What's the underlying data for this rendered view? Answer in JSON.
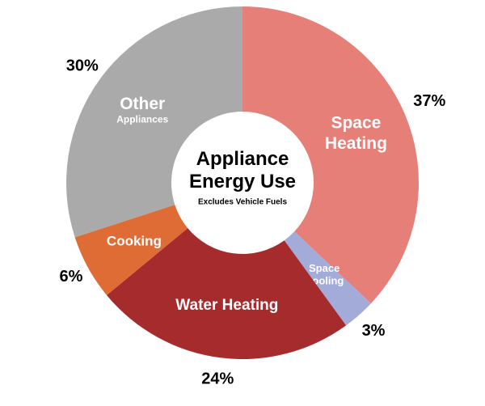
{
  "chart_data": {
    "type": "donut",
    "title": "Appliance Energy Use",
    "subtitle": "Excludes Vehicle Fuels",
    "categories": [
      "Space Heating",
      "Space Cooling",
      "Water Heating",
      "Cooking",
      "Other Appliances"
    ],
    "values": [
      37,
      3,
      24,
      6,
      30
    ],
    "value_labels": [
      "37%",
      "3%",
      "24%",
      "6%",
      "30%"
    ],
    "colors": [
      "#e57f78",
      "#a3acd8",
      "#a52b2c",
      "#e06c35",
      "#aaaaaa"
    ]
  }
}
